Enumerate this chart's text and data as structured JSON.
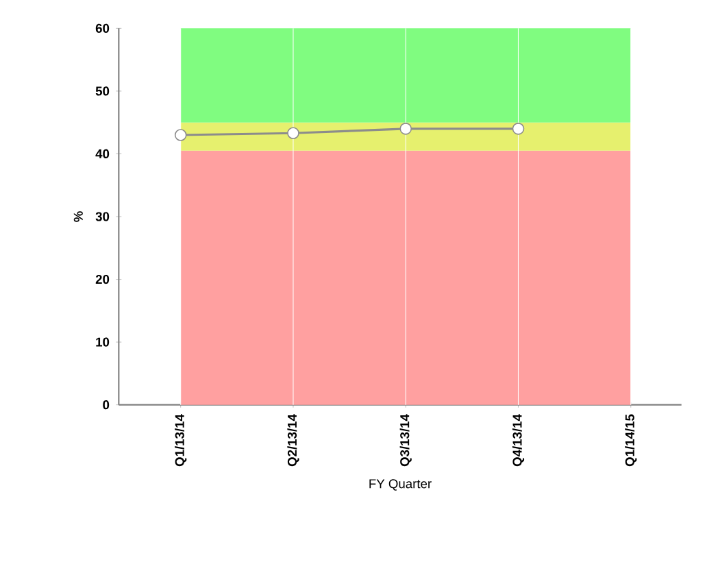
{
  "chart_data": {
    "type": "line",
    "xlabel": "FY Quarter",
    "ylabel": "%",
    "categories": [
      "Q1/13/14",
      "Q2/13/14",
      "Q3/13/14",
      "Q4/13/14",
      "Q1/14/15"
    ],
    "series": [
      {
        "color": "#8c8c8c",
        "values": [
          43,
          43.3,
          44,
          44,
          null
        ]
      }
    ],
    "marker": "circle",
    "ylim": [
      0,
      60
    ],
    "yticks": [
      0,
      10,
      20,
      30,
      40,
      50,
      60
    ],
    "grid": "x",
    "bands": [
      {
        "axis": "y",
        "from": 0,
        "to": 40.5,
        "color": "#ffa0a0"
      },
      {
        "axis": "y",
        "from": 40.5,
        "to": 45,
        "color": "#e6f06e"
      },
      {
        "axis": "y",
        "from": 45,
        "to": 60,
        "color": "#80fc80"
      }
    ]
  }
}
